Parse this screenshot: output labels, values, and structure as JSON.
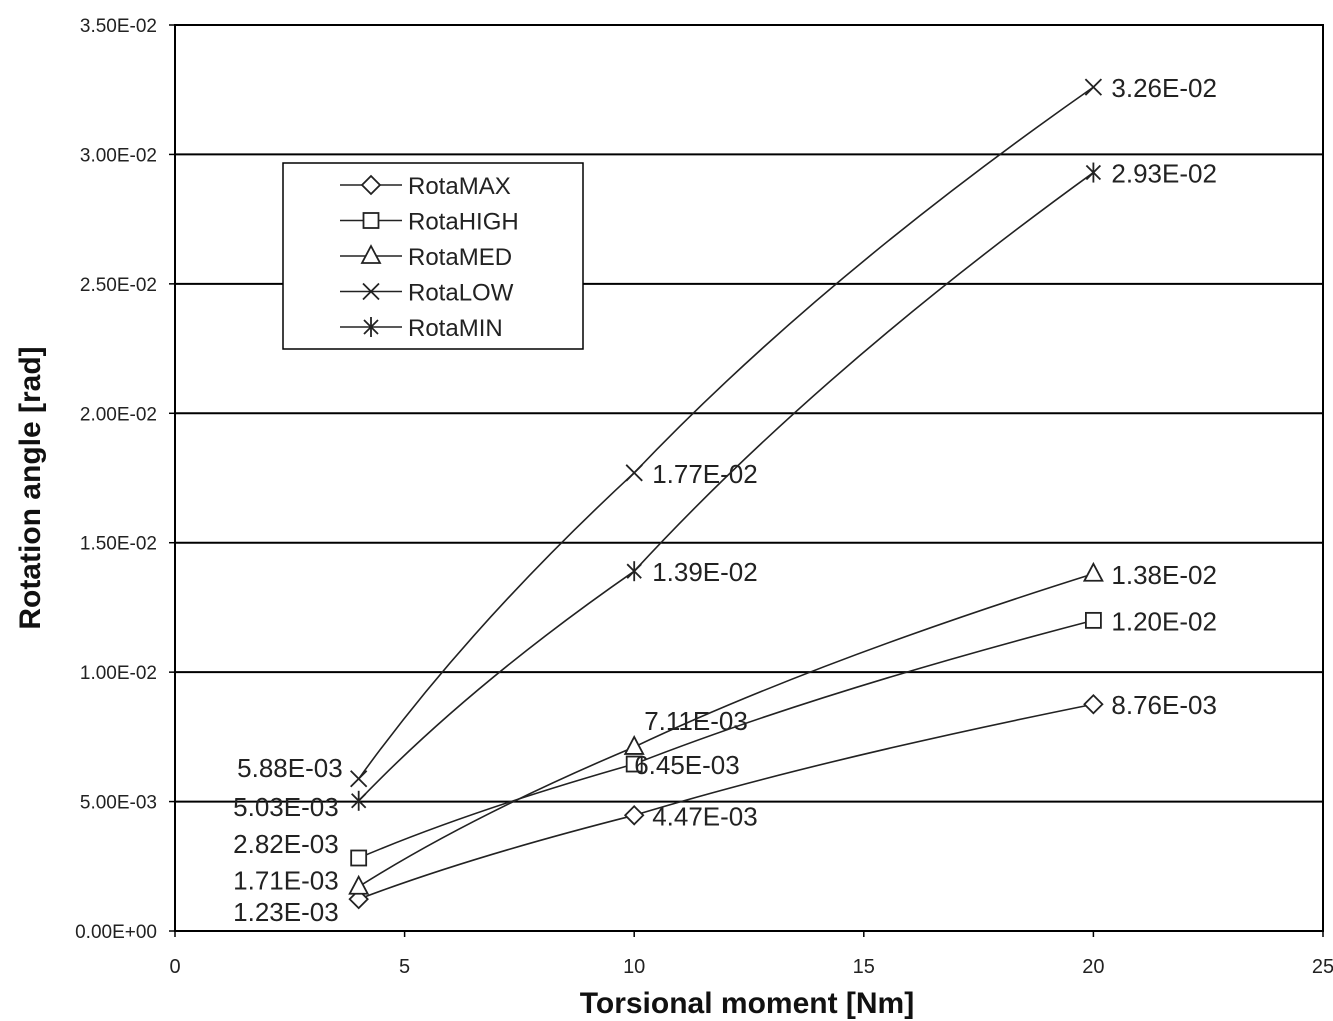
{
  "chart_data": {
    "type": "line",
    "xlabel": "Torsional moment [Nm]",
    "ylabel": "Rotation angle [rad]",
    "xlim": [
      0,
      25
    ],
    "ylim": [
      0,
      0.035
    ],
    "x_ticks": [
      "0",
      "5",
      "10",
      "15",
      "20",
      "25"
    ],
    "y_ticks": [
      "0.00E+00",
      "5.00E-03",
      "1.00E-02",
      "1.50E-02",
      "2.00E-02",
      "2.50E-02",
      "3.00E-02",
      "3.50E-02"
    ],
    "grid": "horizontal",
    "legend_position": "upper-left",
    "x": [
      4,
      10,
      20
    ],
    "series": [
      {
        "name": "RotaMAX",
        "marker": "diamond",
        "values": [
          0.00123,
          0.00447,
          0.00876
        ],
        "labels": [
          "1.23E-03",
          "4.47E-03",
          "8.76E-03"
        ]
      },
      {
        "name": "RotaHIGH",
        "marker": "square",
        "values": [
          0.00282,
          0.00645,
          0.012
        ],
        "labels": [
          "2.82E-03",
          "6.45E-03",
          "1.20E-02"
        ]
      },
      {
        "name": "RotaMED",
        "marker": "triangle",
        "values": [
          0.00171,
          0.00711,
          0.0138
        ],
        "labels": [
          "1.71E-03",
          "7.11E-03",
          "1.38E-02"
        ]
      },
      {
        "name": "RotaLOW",
        "marker": "x",
        "values": [
          0.00588,
          0.0177,
          0.0326
        ],
        "labels": [
          "5.88E-03",
          "1.77E-02",
          "3.26E-02"
        ]
      },
      {
        "name": "RotaMIN",
        "marker": "star",
        "values": [
          0.00503,
          0.0139,
          0.0293
        ],
        "labels": [
          "5.03E-03",
          "1.39E-02",
          "2.93E-02"
        ]
      }
    ]
  }
}
